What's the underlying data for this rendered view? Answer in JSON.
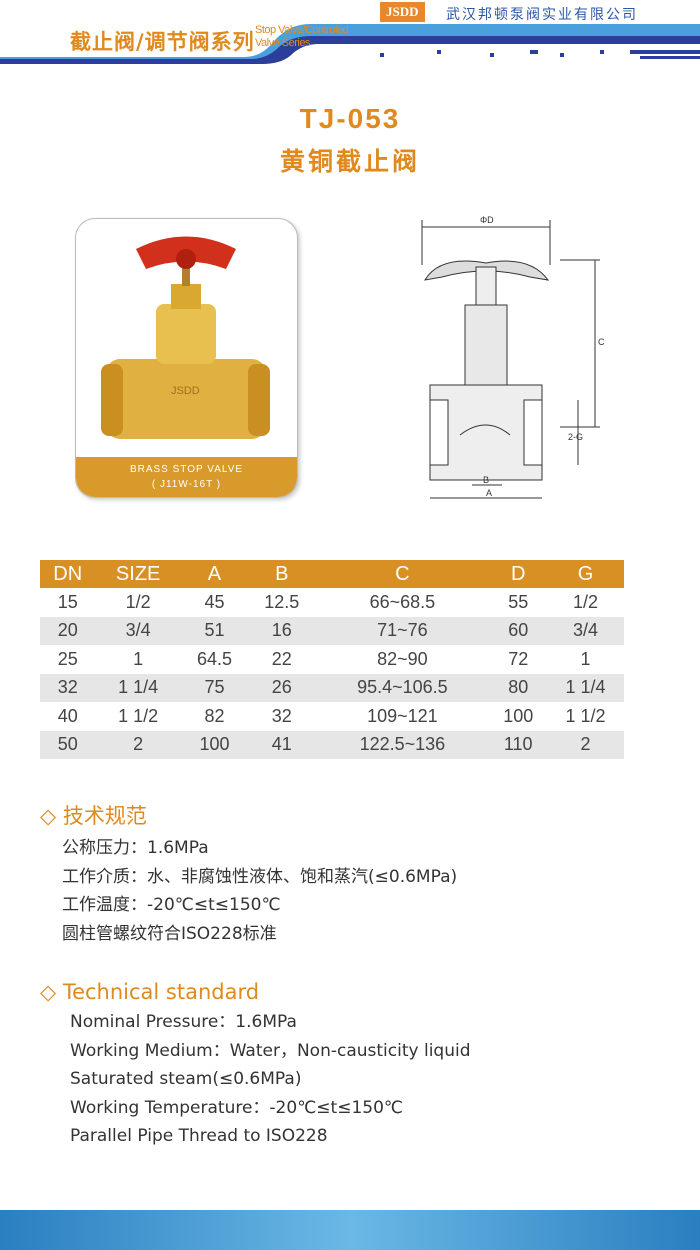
{
  "header": {
    "series_cn": "截止阀/调节阀系列",
    "series_en_1": "Stop Valve/Controled",
    "series_en_2": "Valve Series",
    "logo": "JSDD",
    "company": "武汉邦顿泵阀实业有限公司"
  },
  "product": {
    "model": "TJ-053",
    "name_cn": "黄铜截止阀",
    "caption_1": "BRASS STOP VALVE",
    "caption_2": "( J11W-16T )",
    "photo_mark": "JSDD"
  },
  "drawing": {
    "labels": {
      "d": "ΦD",
      "c": "C",
      "g": "2-G",
      "b": "B",
      "a": "A"
    }
  },
  "table": {
    "headers": [
      "DN",
      "SIZE",
      "A",
      "B",
      "C",
      "D",
      "G"
    ],
    "rows": [
      [
        "15",
        "1/2",
        "45",
        "12.5",
        "66~68.5",
        "55",
        "1/2"
      ],
      [
        "20",
        "3/4",
        "51",
        "16",
        "71~76",
        "60",
        "3/4"
      ],
      [
        "25",
        "1",
        "64.5",
        "22",
        "82~90",
        "72",
        "1"
      ],
      [
        "32",
        "1 1/4",
        "75",
        "26",
        "95.4~106.5",
        "80",
        "1 1/4"
      ],
      [
        "40",
        "1 1/2",
        "82",
        "32",
        "109~121",
        "100",
        "1 1/2"
      ],
      [
        "50",
        "2",
        "100",
        "41",
        "122.5~136",
        "110",
        "2"
      ]
    ]
  },
  "spec_cn": {
    "heading": "◇ 技术规范",
    "lines": [
      "公称压力：1.6MPa",
      "工作介质：水、非腐蚀性液体、饱和蒸汽(≤0.6MPa)",
      "工作温度：-20℃≤t≤150℃",
      "圆柱管螺纹符合ISO228标准"
    ]
  },
  "spec_en": {
    "heading": "◇ Technical standard",
    "lines": [
      "Nominal Pressure：1.6MPa",
      "Working Medium：Water，Non-causticity liquid",
      "Saturated steam(≤0.6MPa)",
      "Working Temperature：-20℃≤t≤150℃",
      "Parallel  Pipe Thread to ISO228"
    ]
  },
  "colors": {
    "accent": "#d88f24",
    "blue": "#2a58a8"
  }
}
